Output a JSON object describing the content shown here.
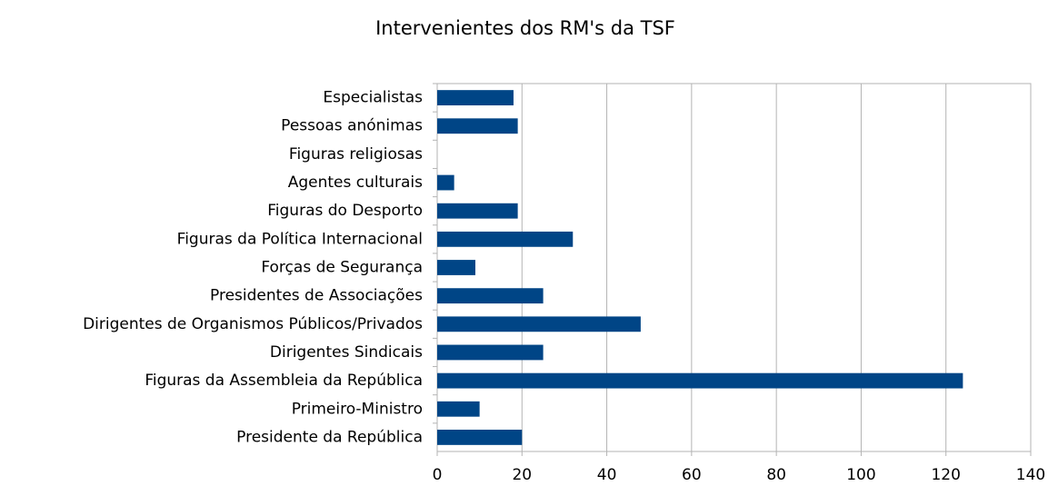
{
  "chart_data": {
    "type": "bar",
    "orientation": "horizontal",
    "title": "Intervenientes dos RM's da TSF",
    "categories": [
      "Especialistas",
      "Pessoas anónimas",
      "Figuras religiosas",
      "Agentes culturais",
      "Figuras do Desporto",
      "Figuras da Política Internacional",
      "Forças de Segurança",
      "Presidentes de Associações",
      "Dirigentes de Organismos Públicos/Privados",
      "Dirigentes Sindicais",
      "Figuras da Assembleia da República",
      "Primeiro-Ministro",
      "Presidente da República"
    ],
    "values": [
      18,
      19,
      0,
      4,
      19,
      32,
      9,
      25,
      48,
      25,
      124,
      10,
      20
    ],
    "color": "#004586",
    "xlim": [
      0,
      140
    ],
    "xticks": [
      0,
      20,
      40,
      60,
      80,
      100,
      120,
      140
    ],
    "grid": true
  }
}
